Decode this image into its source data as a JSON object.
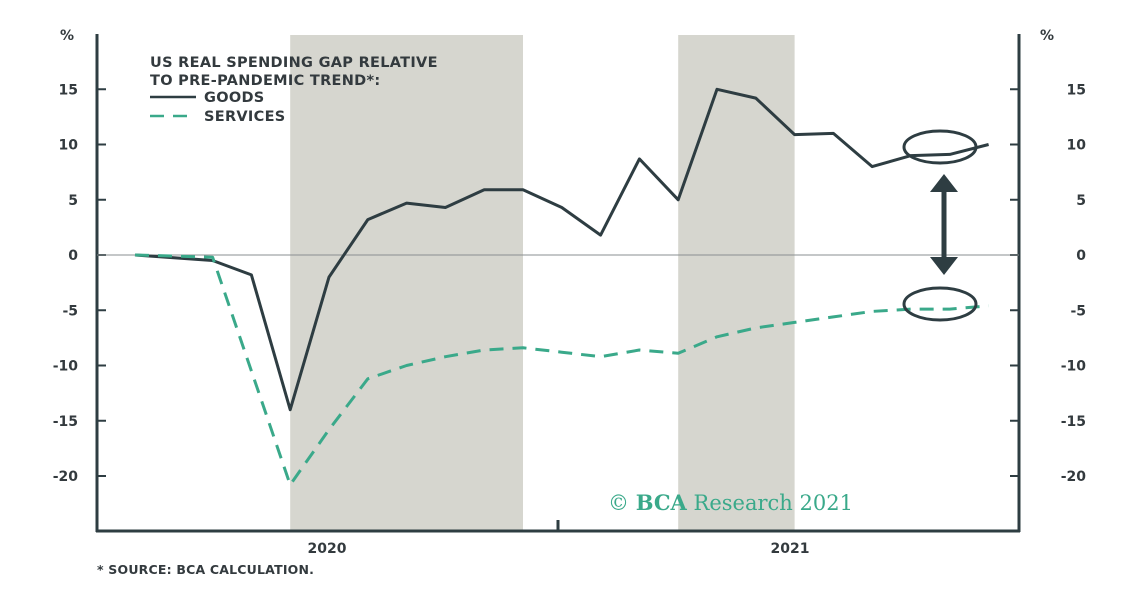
{
  "chart_data": {
    "type": "line",
    "title": "US REAL SPENDING GAP RELATIVE",
    "title_line2": "TO PRE-PANDEMIC TREND*:",
    "y_unit_left": "%",
    "y_unit_right": "%",
    "ylim": [
      -25,
      20
    ],
    "yticks": [
      15,
      10,
      5,
      0,
      -5,
      -10,
      -15,
      -20
    ],
    "ytick_labels": [
      "15",
      "10",
      "5",
      "0",
      "-5",
      "-10",
      "-15",
      "-20"
    ],
    "x_labels": [
      "2020",
      "2021"
    ],
    "x": [
      "2019-09",
      "2019-10",
      "2019-11",
      "2019-12",
      "2020-01",
      "2020-02",
      "2020-03",
      "2020-04",
      "2020-05",
      "2020-06",
      "2020-07",
      "2020-08",
      "2020-09",
      "2020-10",
      "2020-11",
      "2020-12",
      "2021-01",
      "2021-02",
      "2021-03",
      "2021-04",
      "2021-05",
      "2021-06",
      "2021-07"
    ],
    "series": [
      {
        "name": "GOODS",
        "style": "solid",
        "color": "#2e3d42",
        "values": [
          0,
          null,
          -0.5,
          -1.8,
          -14,
          -2,
          3.2,
          4.7,
          4.3,
          5.9,
          5.9,
          4.3,
          1.8,
          8.7,
          5,
          15,
          14.2,
          10.9,
          11,
          8,
          9,
          9.1,
          10
        ]
      },
      {
        "name": "SERVICES",
        "style": "dashed",
        "color": "#3aa98a",
        "values": [
          0,
          null,
          -0.2,
          null,
          -20.8,
          -15.8,
          -11.2,
          -10,
          -9.2,
          -8.6,
          -8.4,
          -8.8,
          -9.2,
          -8.6,
          -8.9,
          -7.4,
          -6.6,
          -6.1,
          -5.6,
          -5.1,
          -4.9,
          -4.9,
          -4.6
        ]
      }
    ],
    "shaded_periods": [
      [
        "2020-01",
        "2020-07"
      ],
      [
        "2020-11",
        "2021-02"
      ]
    ],
    "colors": {
      "shade": "#d6d6cf",
      "axis": "#2e3d42",
      "accent": "#3aa98a"
    },
    "grid": false,
    "legend_position": "top-left"
  },
  "watermark": {
    "symbol": "©",
    "brand": "BCA",
    "name": "Research",
    "year": "2021"
  },
  "footnote": "* SOURCE: BCA CALCULATION."
}
